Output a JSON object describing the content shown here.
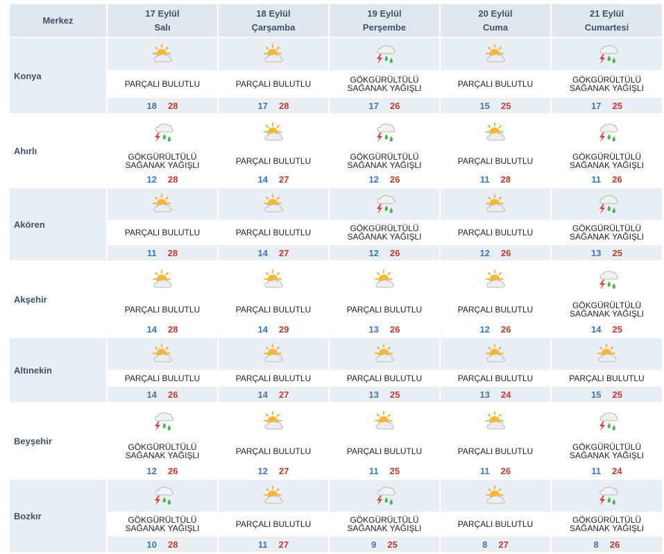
{
  "header": {
    "merkez_label": "Merkez",
    "days": [
      {
        "date": "17 Eylül",
        "weekday": "Salı"
      },
      {
        "date": "18 Eylül",
        "weekday": "Çarşamba"
      },
      {
        "date": "19 Eylül",
        "weekday": "Perşembe"
      },
      {
        "date": "20 Eylül",
        "weekday": "Cuma"
      },
      {
        "date": "21 Eylül",
        "weekday": "Cumartesi"
      }
    ]
  },
  "conditions": {
    "partly": {
      "line1": "PARÇALI BULUTLU",
      "line2": "",
      "icon": "partly-cloudy-icon"
    },
    "storm": {
      "line1": "GÖKGÜRÜLTÜLÜ",
      "line2": "SAĞANAK YAĞIŞLI",
      "icon": "thunderstorm-icon"
    }
  },
  "colors": {
    "header_bg": "#dfe8ef",
    "row_shade": "#e8eff4",
    "min_temp": "#3b76b5",
    "max_temp": "#c0392b"
  },
  "rows": [
    {
      "city": "Konya",
      "shade": true,
      "days": [
        {
          "cond": "partly",
          "min": "18",
          "max": "28"
        },
        {
          "cond": "partly",
          "min": "17",
          "max": "28"
        },
        {
          "cond": "storm",
          "min": "17",
          "max": "26"
        },
        {
          "cond": "partly",
          "min": "15",
          "max": "25"
        },
        {
          "cond": "storm",
          "min": "17",
          "max": "25"
        }
      ]
    },
    {
      "city": "Ahırlı",
      "shade": false,
      "days": [
        {
          "cond": "storm",
          "min": "12",
          "max": "28"
        },
        {
          "cond": "partly",
          "min": "14",
          "max": "27"
        },
        {
          "cond": "storm",
          "min": "12",
          "max": "26"
        },
        {
          "cond": "partly",
          "min": "11",
          "max": "28"
        },
        {
          "cond": "storm",
          "min": "11",
          "max": "26"
        }
      ]
    },
    {
      "city": "Akören",
      "shade": true,
      "days": [
        {
          "cond": "partly",
          "min": "11",
          "max": "28"
        },
        {
          "cond": "partly",
          "min": "14",
          "max": "27"
        },
        {
          "cond": "storm",
          "min": "12",
          "max": "26"
        },
        {
          "cond": "partly",
          "min": "12",
          "max": "26"
        },
        {
          "cond": "storm",
          "min": "13",
          "max": "25"
        }
      ]
    },
    {
      "city": "Akşehir",
      "shade": false,
      "days": [
        {
          "cond": "partly",
          "min": "14",
          "max": "28"
        },
        {
          "cond": "partly",
          "min": "14",
          "max": "29"
        },
        {
          "cond": "partly",
          "min": "13",
          "max": "26"
        },
        {
          "cond": "partly",
          "min": "12",
          "max": "26"
        },
        {
          "cond": "storm",
          "min": "14",
          "max": "25"
        }
      ]
    },
    {
      "city": "Altınekin",
      "shade": true,
      "days": [
        {
          "cond": "partly",
          "min": "14",
          "max": "26"
        },
        {
          "cond": "partly",
          "min": "14",
          "max": "27"
        },
        {
          "cond": "partly",
          "min": "13",
          "max": "25"
        },
        {
          "cond": "partly",
          "min": "13",
          "max": "24"
        },
        {
          "cond": "partly",
          "min": "15",
          "max": "25"
        }
      ]
    },
    {
      "city": "Beyşehir",
      "shade": false,
      "days": [
        {
          "cond": "storm",
          "min": "12",
          "max": "26"
        },
        {
          "cond": "partly",
          "min": "12",
          "max": "27"
        },
        {
          "cond": "partly",
          "min": "11",
          "max": "25"
        },
        {
          "cond": "partly",
          "min": "11",
          "max": "26"
        },
        {
          "cond": "storm",
          "min": "11",
          "max": "24"
        }
      ]
    },
    {
      "city": "Bozkır",
      "shade": true,
      "days": [
        {
          "cond": "storm",
          "min": "10",
          "max": "28"
        },
        {
          "cond": "partly",
          "min": "11",
          "max": "27"
        },
        {
          "cond": "storm",
          "min": "9",
          "max": "25"
        },
        {
          "cond": "partly",
          "min": "8",
          "max": "27"
        },
        {
          "cond": "storm",
          "min": "8",
          "max": "26"
        }
      ]
    }
  ]
}
